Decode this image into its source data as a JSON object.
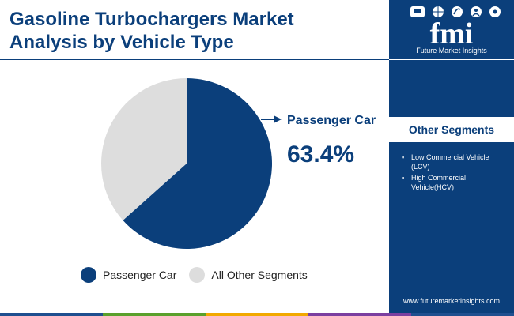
{
  "title_line1": "Gasoline Turbochargers Market",
  "title_line2": "Analysis by Vehicle Type",
  "colors": {
    "brand": "#0b3f7b",
    "other": "#dddddd",
    "bar": [
      "#1f4f8f",
      "#5aa02c",
      "#f2a900",
      "#7b3fa0",
      "#1f4f8f"
    ]
  },
  "chart_data": {
    "type": "pie",
    "title": "Gasoline Turbochargers Market Analysis by Vehicle Type",
    "slices": [
      {
        "label": "Passenger Car",
        "value": 63.4,
        "color": "#0b3f7b"
      },
      {
        "label": "All Other Segments",
        "value": 36.6,
        "color": "#dddddd"
      }
    ],
    "callout": {
      "label": "Passenger Car",
      "value": "63.4%"
    },
    "legend": [
      "Passenger Car",
      "All Other Segments"
    ]
  },
  "sidebar": {
    "logo_text": "fmi",
    "logo_subtitle": "Future Market Insights",
    "logo_icons": [
      "car-icon",
      "globe-icon",
      "leaf-icon",
      "person-icon",
      "gear-icon"
    ],
    "segments_title": "Other Segments",
    "segments": [
      "Low Commercial Vehicle (LCV)",
      "High Commercial Vehicle(HCV)"
    ],
    "url": "www.futuremarketinsights.com"
  }
}
